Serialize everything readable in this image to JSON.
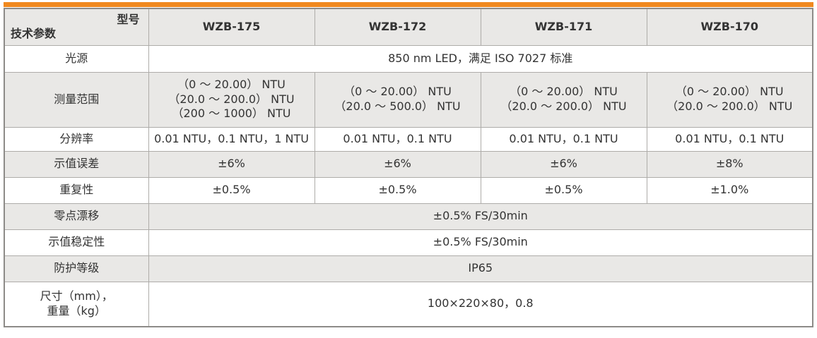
{
  "accent_color": "#F0891F",
  "table": {
    "corner": {
      "model_label": "型号",
      "param_label": "技术参数"
    },
    "models": [
      "WZB-175",
      "WZB-172",
      "WZB-171",
      "WZB-170"
    ],
    "rows": {
      "light_source": {
        "label": "光源",
        "value": "850 nm LED，满足 ISO 7027 标准"
      },
      "measure_range": {
        "label": "测量范围",
        "values": [
          "（0 ～ 20.00） NTU\n（20.0 ～ 200.0） NTU\n（200 ～ 1000） NTU",
          "（0 ～ 20.00） NTU\n（20.0 ～ 500.0） NTU",
          "（0 ～ 20.00） NTU\n（20.0 ～ 200.0） NTU",
          "（0 ～ 20.00） NTU\n（20.0 ～ 200.0） NTU"
        ]
      },
      "resolution": {
        "label": "分辨率",
        "values": [
          "0.01 NTU，0.1 NTU，1 NTU",
          "0.01 NTU，0.1 NTU",
          "0.01 NTU，0.1 NTU",
          "0.01 NTU，0.1 NTU"
        ]
      },
      "indication_error": {
        "label": "示值误差",
        "values": [
          "±6%",
          "±6%",
          "±6%",
          "±8%"
        ]
      },
      "repeatability": {
        "label": "重复性",
        "values": [
          "±0.5%",
          "±0.5%",
          "±0.5%",
          "±1.0%"
        ]
      },
      "zero_drift": {
        "label": "零点漂移",
        "value": "±0.5% FS/30min"
      },
      "indication_stability": {
        "label": "示值稳定性",
        "value": "±0.5% FS/30min"
      },
      "protection_rating": {
        "label": "防护等级",
        "value": "IP65"
      },
      "dimensions_weight": {
        "label": "尺寸（mm），\n重量（kg）",
        "value": "100×220×80，0.8"
      }
    }
  }
}
